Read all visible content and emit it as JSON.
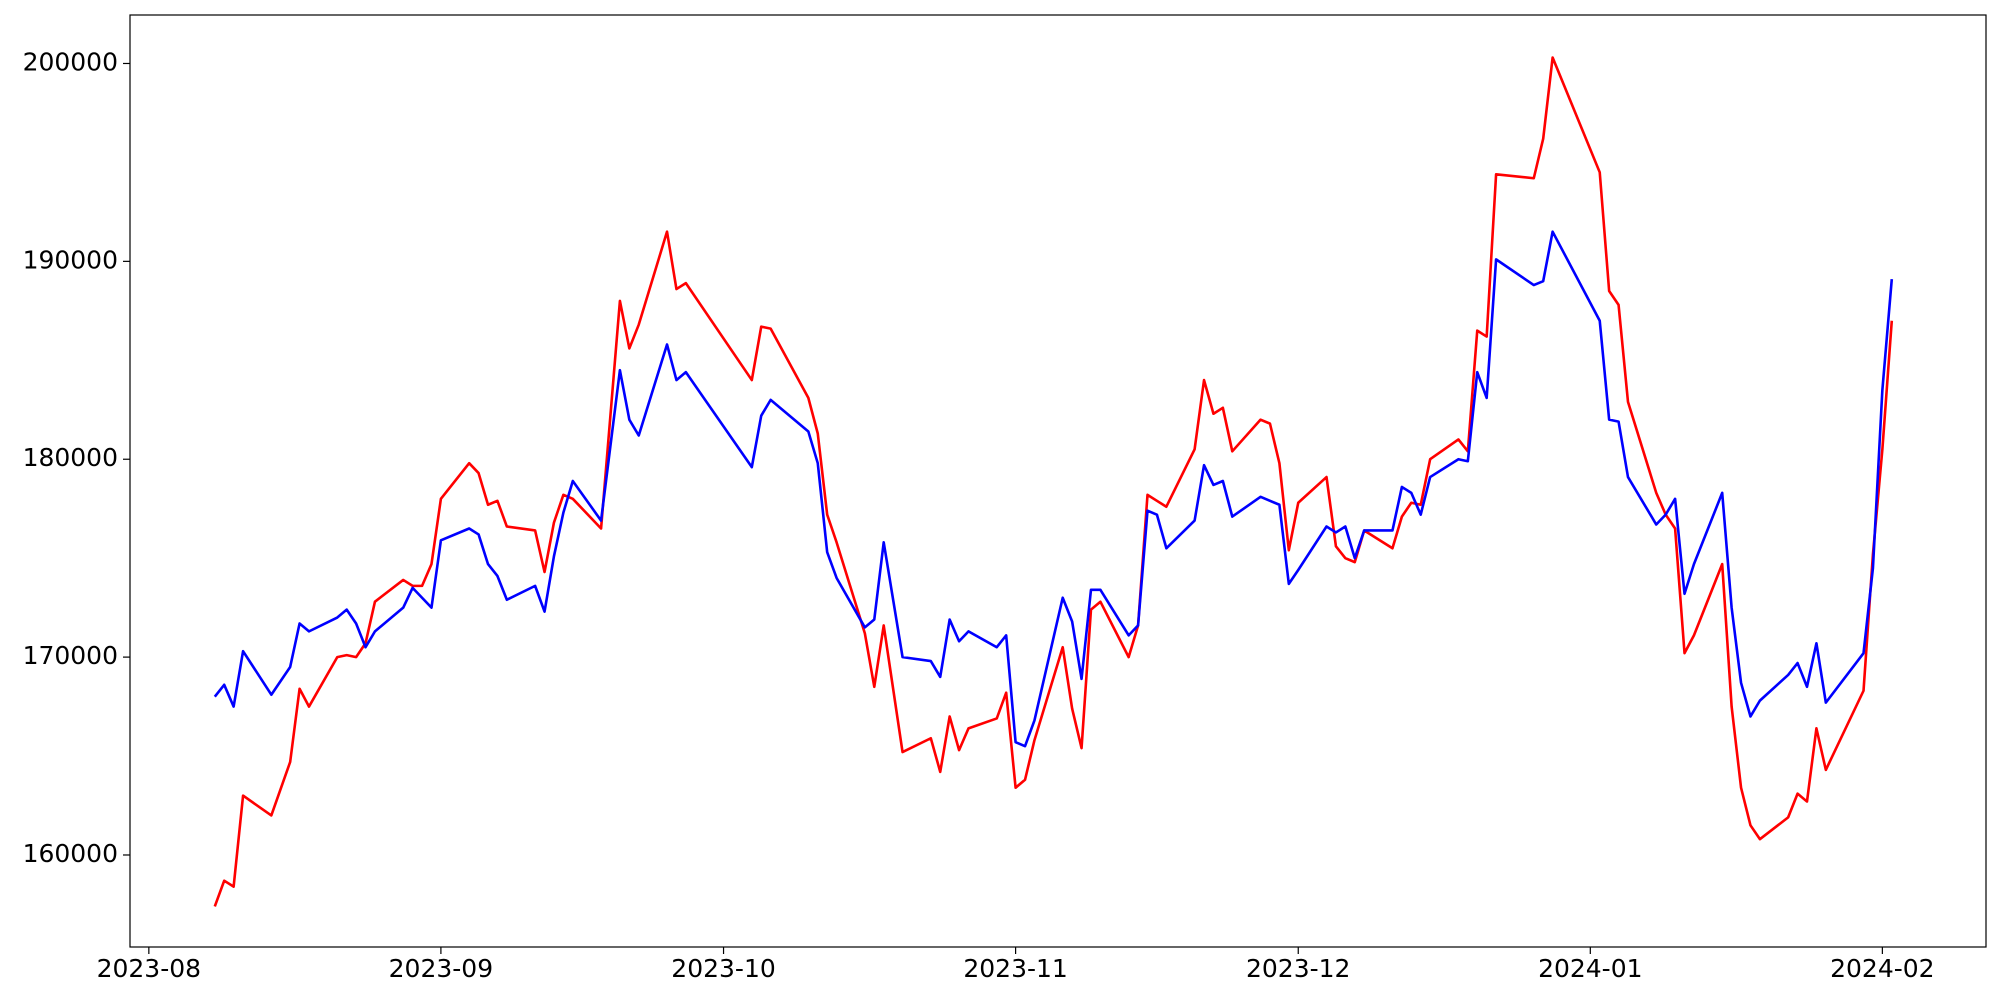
{
  "chart_data": {
    "type": "line",
    "x": [
      "2023-08-08",
      "2023-08-09",
      "2023-08-10",
      "2023-08-11",
      "2023-08-14",
      "2023-08-16",
      "2023-08-17",
      "2023-08-18",
      "2023-08-21",
      "2023-08-22",
      "2023-08-23",
      "2023-08-24",
      "2023-08-25",
      "2023-08-28",
      "2023-08-29",
      "2023-08-30",
      "2023-08-31",
      "2023-09-01",
      "2023-09-04",
      "2023-09-05",
      "2023-09-06",
      "2023-09-07",
      "2023-09-08",
      "2023-09-11",
      "2023-09-12",
      "2023-09-13",
      "2023-09-14",
      "2023-09-15",
      "2023-09-18",
      "2023-09-20",
      "2023-09-21",
      "2023-09-22",
      "2023-09-25",
      "2023-09-26",
      "2023-09-27",
      "2023-10-04",
      "2023-10-05",
      "2023-10-06",
      "2023-10-10",
      "2023-10-11",
      "2023-10-12",
      "2023-10-13",
      "2023-10-16",
      "2023-10-17",
      "2023-10-18",
      "2023-10-20",
      "2023-10-23",
      "2023-10-24",
      "2023-10-25",
      "2023-10-26",
      "2023-10-27",
      "2023-10-30",
      "2023-10-31",
      "2023-11-01",
      "2023-11-02",
      "2023-11-03",
      "2023-11-06",
      "2023-11-07",
      "2023-11-08",
      "2023-11-09",
      "2023-11-10",
      "2023-11-13",
      "2023-11-14",
      "2023-11-15",
      "2023-11-16",
      "2023-11-17",
      "2023-11-20",
      "2023-11-21",
      "2023-11-22",
      "2023-11-23",
      "2023-11-24",
      "2023-11-27",
      "2023-11-28",
      "2023-11-29",
      "2023-11-30",
      "2023-12-01",
      "2023-12-04",
      "2023-12-05",
      "2023-12-06",
      "2023-12-07",
      "2023-12-08",
      "2023-12-11",
      "2023-12-12",
      "2023-12-13",
      "2023-12-14",
      "2023-12-15",
      "2023-12-18",
      "2023-12-19",
      "2023-12-20",
      "2023-12-21",
      "2023-12-22",
      "2023-12-26",
      "2023-12-27",
      "2023-12-28",
      "2024-01-02",
      "2024-01-03",
      "2024-01-04",
      "2024-01-05",
      "2024-01-08",
      "2024-01-09",
      "2024-01-10",
      "2024-01-11",
      "2024-01-12",
      "2024-01-15",
      "2024-01-16",
      "2024-01-17",
      "2024-01-18",
      "2024-01-19",
      "2024-01-22",
      "2024-01-23",
      "2024-01-24",
      "2024-01-25",
      "2024-01-26",
      "2024-01-30",
      "2024-01-31",
      "2024-02-01",
      "2024-02-02"
    ],
    "series": [
      {
        "color": "#ff0000",
        "values": [
          157400,
          158700,
          158400,
          163000,
          162000,
          164700,
          168400,
          167500,
          170000,
          170100,
          170000,
          170700,
          172800,
          173900,
          173600,
          173600,
          174700,
          178000,
          179800,
          179300,
          177700,
          177900,
          176600,
          176400,
          174300,
          176800,
          178200,
          178000,
          176500,
          188000,
          185600,
          186800,
          191500,
          188600,
          188900,
          184000,
          186700,
          186600,
          183100,
          181300,
          177200,
          175800,
          171200,
          168500,
          171600,
          165200,
          165900,
          164200,
          167000,
          165300,
          166400,
          166900,
          168200,
          163400,
          163800,
          165800,
          170500,
          167400,
          165400,
          172400,
          172800,
          170000,
          171600,
          178200,
          177900,
          177600,
          180500,
          184000,
          182300,
          182600,
          180400,
          182000,
          181800,
          179800,
          175400,
          177800,
          179100,
          175600,
          175000,
          174800,
          176400,
          175500,
          177100,
          177800,
          177700,
          180000,
          181000,
          180400,
          186500,
          186200,
          194400,
          194200,
          196200,
          200300,
          194500,
          188500,
          187800,
          182900,
          178300,
          177200,
          176500,
          170200,
          171100,
          174700,
          167500,
          163400,
          161500,
          160800,
          161900,
          163100,
          162700,
          166400,
          164300,
          168300,
          175200,
          180500,
          187000
        ]
      },
      {
        "color": "#0000ff",
        "values": [
          168000,
          168600,
          167500,
          170300,
          168100,
          169500,
          171700,
          171300,
          172000,
          172400,
          171700,
          170500,
          171300,
          172500,
          173500,
          173000,
          172500,
          175900,
          176500,
          176200,
          174700,
          174100,
          172900,
          173600,
          172300,
          175100,
          177300,
          178900,
          176900,
          184500,
          182000,
          181200,
          185800,
          184000,
          184400,
          179600,
          182200,
          183000,
          181400,
          179800,
          175300,
          174000,
          171500,
          171900,
          175800,
          170000,
          169800,
          169000,
          171900,
          170800,
          171300,
          170500,
          171100,
          165700,
          165500,
          166800,
          173000,
          171800,
          168900,
          173400,
          173400,
          171100,
          171600,
          177400,
          177200,
          175500,
          176900,
          179700,
          178700,
          178900,
          177100,
          178100,
          177900,
          177700,
          173700,
          174400,
          176600,
          176300,
          176600,
          175000,
          176400,
          176400,
          178600,
          178300,
          177200,
          179100,
          180000,
          179900,
          184400,
          183100,
          190100,
          188800,
          189000,
          191500,
          187000,
          182000,
          181900,
          179100,
          176700,
          177200,
          178000,
          173200,
          174700,
          178300,
          172500,
          168700,
          167000,
          167800,
          169100,
          169700,
          168500,
          170700,
          167700,
          170200,
          174500,
          183500,
          189100
        ]
      }
    ],
    "xlim": [
      "2023-07-30",
      "2024-02-12"
    ],
    "xticks": [
      {
        "value": "2023-08-01",
        "label": "2023-08"
      },
      {
        "value": "2023-09-01",
        "label": "2023-09"
      },
      {
        "value": "2023-10-01",
        "label": "2023-10"
      },
      {
        "value": "2023-11-01",
        "label": "2023-11"
      },
      {
        "value": "2023-12-01",
        "label": "2023-12"
      },
      {
        "value": "2024-01-01",
        "label": "2024-01"
      },
      {
        "value": "2024-02-01",
        "label": "2024-02"
      }
    ],
    "ylim": [
      155350,
      202450
    ],
    "yticks": [
      160000,
      170000,
      180000,
      190000,
      200000
    ],
    "grid": false
  }
}
